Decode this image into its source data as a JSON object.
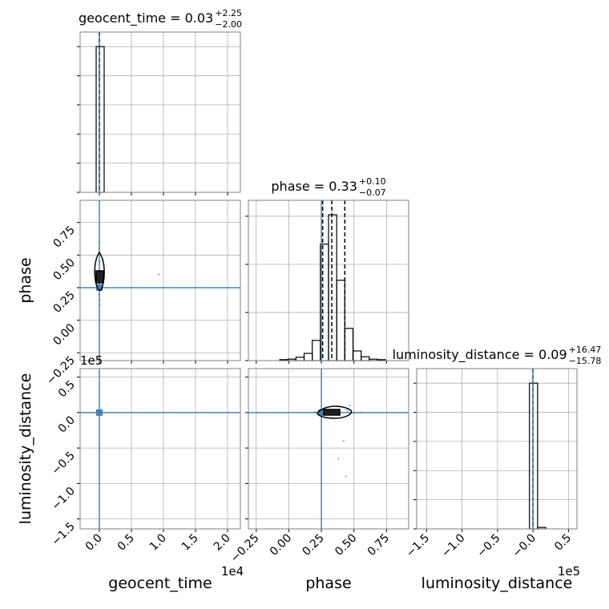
{
  "chart_data": [
    {
      "type": "histogram",
      "title": "geocent_time = 0.03",
      "title_sup": "+2.25",
      "title_sub": "−2.00",
      "bins": [
        -0.05,
        0.075
      ],
      "values": [
        1.0
      ],
      "quantiles": [
        -0.0002,
        3e-06,
        0.000228
      ],
      "truth": 0,
      "xlim": [
        -0.3,
        2.2
      ],
      "ylim": [
        0,
        1.1
      ],
      "xticks": [
        0,
        0.5,
        1,
        1.5,
        2
      ],
      "yticks": [
        0,
        0.2,
        0.4,
        0.6,
        0.8,
        1
      ],
      "show_xticklabels": false,
      "show_yticklabels": false,
      "color": "#000000",
      "truth_color": "#4682b4",
      "grid": true
    },
    {
      "type": "scatter",
      "x": [
        0.002,
        -0.003,
        0.004,
        0,
        -0.002,
        0.001,
        0.003,
        -0.004,
        0.925,
        0.005
      ],
      "y": [
        0.12,
        0.2,
        0.45,
        0.55,
        0.6,
        0.3,
        0.38,
        0.27,
        0.35,
        0.15
      ],
      "truth_x": 0,
      "truth_y": 0.25,
      "xlim": [
        -0.3,
        2.2
      ],
      "ylim": [
        -0.31,
        0.92
      ],
      "xticks": [
        0,
        0.5,
        1,
        1.5,
        2
      ],
      "yticks": [
        {
          "value": -0.25,
          "label": "−0.25"
        },
        {
          "value": 0,
          "label": "0.00"
        },
        0.25,
        {
          "value": 0.5,
          "label": "0.50"
        },
        0.75
      ],
      "ylabel": "phase",
      "show_xticklabels": false,
      "show_yticklabels": true,
      "color": "#999999",
      "truth_color": "#4682b4",
      "grid": true
    },
    {
      "type": "histogram",
      "title": "phase = 0.33",
      "title_sup": "+0.10",
      "title_sub": "−0.07",
      "bins": [
        -0.07,
        -0.0075,
        0.055,
        0.1175,
        0.18,
        0.2425,
        0.305,
        0.3675,
        0.43,
        0.4925,
        0.555,
        0.6175,
        0.68,
        0.7425
      ],
      "values": [
        0.02,
        0.03,
        0.07,
        0.15,
        0.42,
        2.42,
        3.03,
        1.67,
        0.67,
        0.2,
        0.08,
        0.03,
        0.02
      ],
      "quantiles": [
        0.26,
        0.33,
        0.43
      ],
      "truth": 0.25,
      "xlim": [
        -0.31,
        0.92
      ],
      "ylim": [
        0,
        3.33
      ],
      "xticks": [
        -0.25,
        0,
        0.25,
        0.5,
        0.75
      ],
      "yticks": [
        0,
        1,
        2,
        3
      ],
      "show_xticklabels": false,
      "show_yticklabels": false,
      "color": "#000000",
      "truth_color": "#4682b4",
      "grid": true
    },
    {
      "type": "scatter",
      "x": [
        0.003,
        -0.004,
        0.002,
        -0.002,
        0.005
      ],
      "y": [
        0.005,
        -0.008,
        0.01,
        -0.004,
        0.002
      ],
      "truth_x": 0,
      "truth_y": 0,
      "xlim": [
        -0.3,
        2.2
      ],
      "ylim": [
        -1.64,
        0.62
      ],
      "xticks": [
        {
          "value": 0,
          "label": "0.0"
        },
        0.5,
        {
          "value": 1,
          "label": "1.0"
        },
        1.5,
        {
          "value": 2,
          "label": "2.0"
        }
      ],
      "yticks": [
        {
          "value": -1.5,
          "label": "−1.5"
        },
        {
          "value": -1,
          "label": "−1.0"
        },
        {
          "value": -0.5,
          "label": "−0.5"
        },
        {
          "value": 0,
          "label": "0.0"
        },
        0.5
      ],
      "xlabel": "geocent_time",
      "ylabel": "luminosity_distance",
      "x_offset": "1e4",
      "y_offset": "1e5",
      "show_xticklabels": true,
      "show_yticklabels": true,
      "color": "#999999",
      "truth_color": "#4682b4",
      "grid": true
    },
    {
      "type": "scatter",
      "x": [
        0.2,
        0.3,
        0.45,
        0.5,
        0.55,
        0.38,
        0.44,
        0.42,
        0.47,
        0.35,
        0.28
      ],
      "y": [
        0.01,
        -0.02,
        0.03,
        -0.01,
        0,
        -0.65,
        -0.9,
        -0.4,
        0.1,
        0.02,
        -0.03
      ],
      "truth_x": 0.25,
      "truth_y": 0,
      "xlim": [
        -0.31,
        0.92
      ],
      "ylim": [
        -1.64,
        0.62
      ],
      "xticks": [
        {
          "value": -0.25,
          "label": "−0.25"
        },
        {
          "value": 0,
          "label": "0.00"
        },
        0.25,
        {
          "value": 0.5,
          "label": "0.50"
        },
        0.75
      ],
      "yticks": [
        -1.5,
        -1,
        -0.5,
        0,
        0.5
      ],
      "xlabel": "phase",
      "show_xticklabels": true,
      "show_yticklabels": false,
      "color": "#999999",
      "truth_color": "#4682b4",
      "grid": true
    },
    {
      "type": "histogram",
      "title": "luminosity_distance = 0.09",
      "title_sup": "+16.47",
      "title_sub": "−15.78",
      "bins": [
        -0.05,
        0.065,
        0.18
      ],
      "values": [
        1.0,
        0.01
      ],
      "quantiles": [
        -0.000157,
        9e-07,
        0.000165
      ],
      "truth": 0,
      "xlim": [
        -1.64,
        0.62
      ],
      "ylim": [
        0,
        1.1
      ],
      "xticks": [
        {
          "value": -1.5,
          "label": "−1.5"
        },
        {
          "value": -1,
          "label": "−1.0"
        },
        {
          "value": -0.5,
          "label": "−0.5"
        },
        {
          "value": 0,
          "label": "−0.0"
        },
        0.5
      ],
      "yticks": [
        0,
        0.2,
        0.4,
        0.6,
        0.8,
        1
      ],
      "xlabel": "luminosity_distance",
      "x_offset": "1e5",
      "show_xticklabels": true,
      "show_yticklabels": false,
      "color": "#000000",
      "truth_color": "#4682b4",
      "grid": true
    }
  ]
}
